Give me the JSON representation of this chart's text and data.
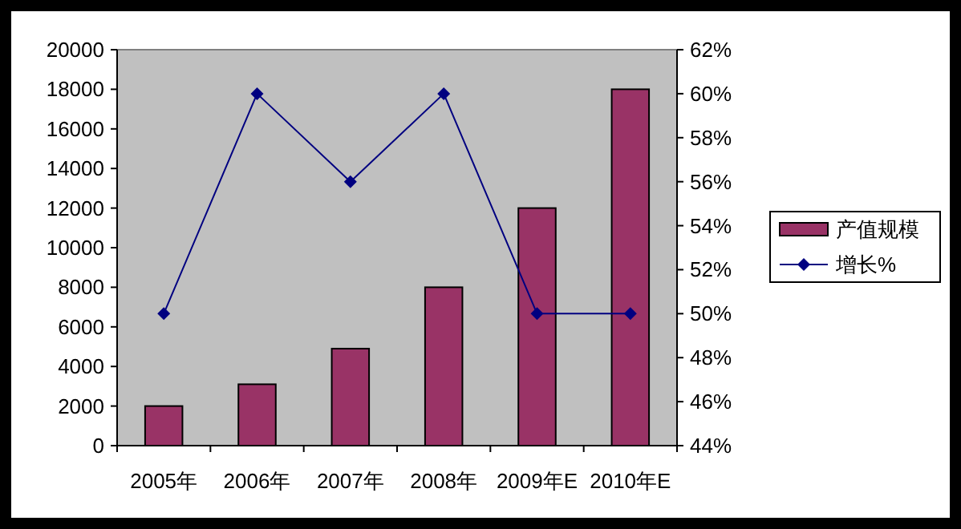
{
  "chart_data": {
    "type": "bar",
    "categories": [
      "2005年",
      "2006年",
      "2007年",
      "2008年",
      "2009年E",
      "2010年E"
    ],
    "series": [
      {
        "name": "产值规模",
        "color": "#993366",
        "values": [
          2000,
          3100,
          4900,
          8000,
          12000,
          18000
        ]
      },
      {
        "name": "增长%",
        "type": "line",
        "axis": "y2",
        "color": "#000080",
        "marker": "diamond",
        "values": [
          50,
          60,
          56,
          60,
          50,
          50
        ]
      }
    ],
    "ylim": [
      0,
      20000
    ],
    "yticks": [
      0,
      2000,
      4000,
      6000,
      8000,
      10000,
      12000,
      14000,
      16000,
      18000,
      20000
    ],
    "y2lim": [
      44,
      62
    ],
    "y2ticks": [
      {
        "value": 44,
        "label": "44%"
      },
      {
        "value": 46,
        "label": "46%"
      },
      {
        "value": 48,
        "label": "48%"
      },
      {
        "value": 50,
        "label": "50%"
      },
      {
        "value": 52,
        "label": "52%"
      },
      {
        "value": 54,
        "label": "54%"
      },
      {
        "value": 56,
        "label": "56%"
      },
      {
        "value": 58,
        "label": "58%"
      },
      {
        "value": 60,
        "label": "60%"
      },
      {
        "value": 62,
        "label": "62%"
      }
    ],
    "legend": "right"
  }
}
